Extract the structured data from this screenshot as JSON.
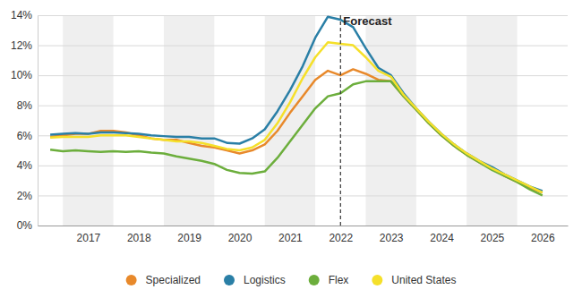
{
  "chart_data": {
    "type": "line",
    "x": [
      2016.75,
      2017,
      2017.25,
      2017.5,
      2017.75,
      2018,
      2018.25,
      2018.5,
      2018.75,
      2019,
      2019.25,
      2019.5,
      2019.75,
      2020,
      2020.25,
      2020.5,
      2020.75,
      2021,
      2021.25,
      2021.5,
      2021.75,
      2022,
      2022.25,
      2022.5,
      2022.75,
      2023,
      2023.25,
      2023.5,
      2023.75,
      2024,
      2024.25,
      2024.5,
      2024.75,
      2025,
      2025.25,
      2025.5,
      2025.75,
      2026,
      2026.25,
      2026.5
    ],
    "series": [
      {
        "name": "Specialized",
        "color": "#e8892b",
        "values": [
          5.9,
          6.0,
          6.1,
          6.1,
          6.3,
          6.3,
          6.2,
          6.0,
          5.8,
          5.7,
          5.7,
          5.5,
          5.3,
          5.2,
          5.0,
          4.8,
          5.0,
          5.4,
          6.3,
          7.5,
          8.6,
          9.7,
          10.3,
          10.0,
          10.4,
          10.1,
          9.7,
          9.6,
          8.6,
          7.7,
          6.8,
          6.0,
          5.3,
          4.7,
          4.2,
          3.8,
          3.3,
          2.9,
          2.5,
          2.2
        ]
      },
      {
        "name": "Logistics",
        "color": "#2a7fa6",
        "values": [
          6.05,
          6.1,
          6.15,
          6.1,
          6.2,
          6.2,
          6.15,
          6.1,
          6.0,
          5.95,
          5.9,
          5.9,
          5.8,
          5.8,
          5.5,
          5.45,
          5.8,
          6.4,
          7.6,
          9.0,
          10.6,
          12.5,
          13.9,
          13.7,
          13.2,
          11.8,
          10.5,
          10.0,
          8.8,
          7.8,
          6.9,
          6.1,
          5.4,
          4.8,
          4.3,
          3.9,
          3.4,
          3.0,
          2.6,
          2.3
        ]
      },
      {
        "name": "Flex",
        "color": "#6cae3c",
        "values": [
          5.05,
          4.95,
          5.0,
          4.95,
          4.9,
          4.95,
          4.9,
          4.95,
          4.85,
          4.8,
          4.6,
          4.45,
          4.3,
          4.1,
          3.7,
          3.5,
          3.45,
          3.6,
          4.5,
          5.6,
          6.7,
          7.8,
          8.6,
          8.8,
          9.4,
          9.6,
          9.6,
          9.6,
          8.6,
          7.7,
          6.8,
          6.0,
          5.3,
          4.7,
          4.2,
          3.7,
          3.3,
          2.9,
          2.4,
          2.0
        ]
      },
      {
        "name": "United States",
        "color": "#f5e02a",
        "values": [
          5.85,
          5.9,
          5.9,
          5.9,
          6.0,
          6.0,
          6.0,
          5.9,
          5.8,
          5.7,
          5.6,
          5.6,
          5.5,
          5.3,
          5.1,
          5.0,
          5.2,
          5.7,
          6.8,
          8.2,
          9.8,
          11.2,
          12.2,
          12.1,
          12.0,
          11.2,
          10.3,
          9.9,
          8.7,
          7.8,
          6.9,
          6.1,
          5.4,
          4.8,
          4.3,
          3.8,
          3.4,
          3.0,
          2.6,
          2.2
        ]
      }
    ],
    "xlim": [
      2016.5,
      2027
    ],
    "xticks": [
      {
        "value": 2017.5,
        "label": "2017"
      },
      {
        "value": 2018.5,
        "label": "2018"
      },
      {
        "value": 2019.5,
        "label": "2019"
      },
      {
        "value": 2020.5,
        "label": "2020"
      },
      {
        "value": 2021.5,
        "label": "2021"
      },
      {
        "value": 2022.5,
        "label": "2022"
      },
      {
        "value": 2023.5,
        "label": "2023"
      },
      {
        "value": 2024.5,
        "label": "2024"
      },
      {
        "value": 2025.5,
        "label": "2025"
      },
      {
        "value": 2026.5,
        "label": "2026"
      }
    ],
    "ylim": [
      0,
      14
    ],
    "yticks": [
      {
        "value": 0,
        "label": "0%"
      },
      {
        "value": 2,
        "label": "2%"
      },
      {
        "value": 4,
        "label": "4%"
      },
      {
        "value": 6,
        "label": "6%"
      },
      {
        "value": 8,
        "label": "8%"
      },
      {
        "value": 10,
        "label": "10%"
      },
      {
        "value": 12,
        "label": "12%"
      },
      {
        "value": 14,
        "label": "14%"
      }
    ],
    "annotations": [
      {
        "text": "Forecast",
        "x": 2022.5
      }
    ],
    "grid": true,
    "legend": "bottom"
  }
}
